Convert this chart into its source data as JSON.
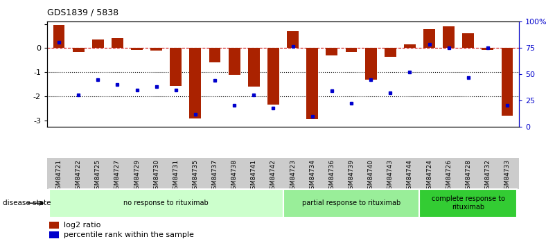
{
  "title": "GDS1839 / 5838",
  "samples": [
    "GSM84721",
    "GSM84722",
    "GSM84725",
    "GSM84727",
    "GSM84729",
    "GSM84730",
    "GSM84731",
    "GSM84735",
    "GSM84737",
    "GSM84738",
    "GSM84741",
    "GSM84742",
    "GSM84723",
    "GSM84734",
    "GSM84736",
    "GSM84739",
    "GSM84740",
    "GSM84743",
    "GSM84744",
    "GSM84724",
    "GSM84726",
    "GSM84728",
    "GSM84732",
    "GSM84733"
  ],
  "log2_ratio": [
    0.95,
    -0.15,
    0.35,
    0.4,
    -0.08,
    -0.1,
    -1.55,
    -2.9,
    -0.6,
    -1.1,
    -1.6,
    -2.35,
    0.7,
    -2.95,
    -0.3,
    -0.15,
    -1.3,
    -0.35,
    0.15,
    0.8,
    0.9,
    0.6,
    -0.07,
    -2.8
  ],
  "percentile": [
    80,
    30,
    45,
    40,
    35,
    38,
    35,
    12,
    44,
    20,
    30,
    18,
    76,
    10,
    34,
    22,
    45,
    32,
    52,
    78,
    75,
    47,
    75,
    20
  ],
  "groups": [
    {
      "label": "no response to rituximab",
      "start": 0,
      "end": 12,
      "color": "#ccffcc"
    },
    {
      "label": "partial response to rituximab",
      "start": 12,
      "end": 19,
      "color": "#99ee99"
    },
    {
      "label": "complete response to\nrituximab",
      "start": 19,
      "end": 24,
      "color": "#33cc33"
    }
  ],
  "bar_color": "#aa2200",
  "dot_color": "#0000cc",
  "ylim_left": [
    -3.25,
    1.1
  ],
  "ylim_right": [
    0,
    100
  ],
  "yticks_left": [
    1,
    0,
    -1,
    -2,
    -3
  ],
  "yticks_right": [
    0,
    25,
    50,
    75,
    100
  ],
  "ytick_right_labels": [
    "0",
    "25",
    "50",
    "75",
    "100%"
  ],
  "hline_y": [
    0,
    -1,
    -2
  ],
  "hline_styles": [
    "dashed",
    "dotted",
    "dotted"
  ],
  "hline_colors": [
    "#cc0000",
    "black",
    "black"
  ],
  "legend_labels": [
    "log2 ratio",
    "percentile rank within the sample"
  ],
  "disease_state_label": "disease state",
  "background_color": "#ffffff",
  "xtick_bg": "#cccccc"
}
